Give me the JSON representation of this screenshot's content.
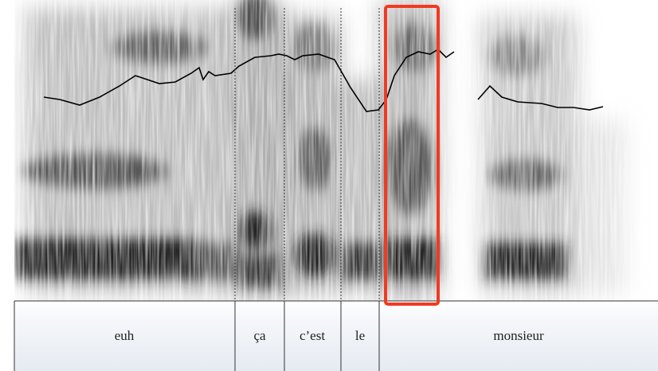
{
  "tier": {
    "words": [
      "euh",
      "ça",
      "c’est",
      "le",
      "monsieur"
    ]
  }
}
